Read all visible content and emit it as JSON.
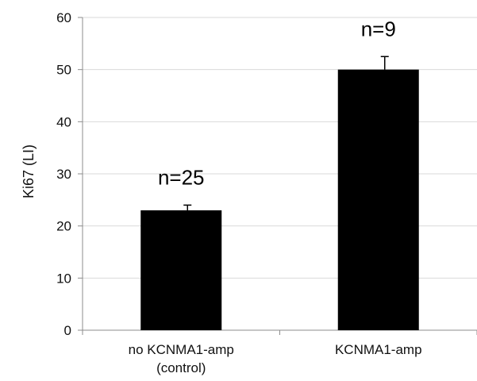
{
  "chart_data": {
    "type": "bar",
    "categories": [
      [
        "no KCNMA1-amp",
        "(control)"
      ],
      [
        "KCNMA1-amp"
      ]
    ],
    "values": [
      23,
      50
    ],
    "errors": [
      1.0,
      2.5
    ],
    "annotations": [
      "n=25",
      "n=9"
    ],
    "ylabel": "Ki67 (LI)",
    "xlabel": "",
    "title": "",
    "ylim": [
      0,
      60
    ],
    "yticks": [
      0,
      10,
      20,
      30,
      40,
      50,
      60
    ],
    "grid": true,
    "bar_color": "#000000",
    "grid_color": "#d9d9d9",
    "axis_color": "#8c8c8c"
  }
}
